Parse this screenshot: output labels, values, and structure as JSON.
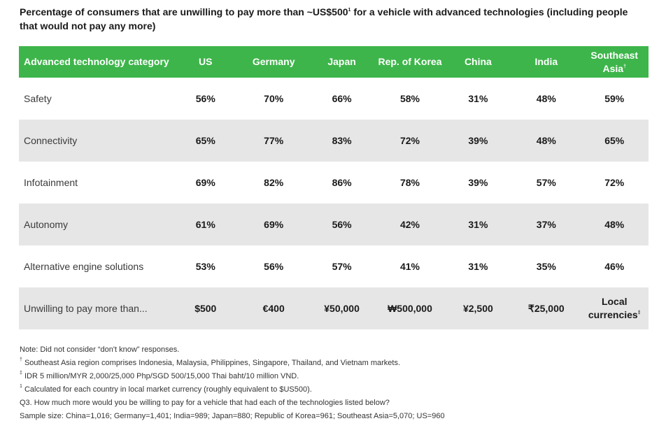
{
  "title": "Percentage of consumers that are unwilling to pay more than ~US$500¹ for a vehicle with advanced technologies (including people that would not pay any more)",
  "colors": {
    "header_bg": "#3db54a",
    "alt_row_bg": "#e6e6e6"
  },
  "chart_data": {
    "type": "table",
    "columns": [
      "Advanced technology category",
      "US",
      "Germany",
      "Japan",
      "Rep. of Korea",
      "China",
      "India",
      "Southeast Asia†"
    ],
    "rows": [
      [
        "Safety",
        "56%",
        "70%",
        "66%",
        "58%",
        "31%",
        "48%",
        "59%"
      ],
      [
        "Connectivity",
        "65%",
        "77%",
        "83%",
        "72%",
        "39%",
        "48%",
        "65%"
      ],
      [
        "Infotainment",
        "69%",
        "82%",
        "86%",
        "78%",
        "39%",
        "57%",
        "72%"
      ],
      [
        "Autonomy",
        "61%",
        "69%",
        "56%",
        "42%",
        "31%",
        "37%",
        "48%"
      ],
      [
        "Alternative engine solutions",
        "53%",
        "56%",
        "57%",
        "41%",
        "31%",
        "35%",
        "46%"
      ],
      [
        "Unwilling to pay more than...",
        "$500",
        "€400",
        "¥50,000",
        "₩500,000",
        "¥2,500",
        "₹25,000",
        "Local currencies‡"
      ]
    ]
  },
  "notes": [
    "Note: Did not consider “don't know” responses.",
    "† Southeast Asia region comprises Indonesia, Malaysia, Philippines, Singapore, Thailand, and Vietnam markets.",
    "‡ IDR 5 million/MYR 2,000/25,000 Php/SGD 500/15,000 Thai baht/10 million VND.",
    "¹ Calculated for each country in local market currency (roughly equivalent to $US500).",
    "Q3. How much more would you be willing to pay for a vehicle that had each of the technologies listed below?",
    "Sample size: China=1,016; Germany=1,401; India=989; Japan=880; Republic of Korea=961; Southeast Asia=5,070; US=960"
  ]
}
